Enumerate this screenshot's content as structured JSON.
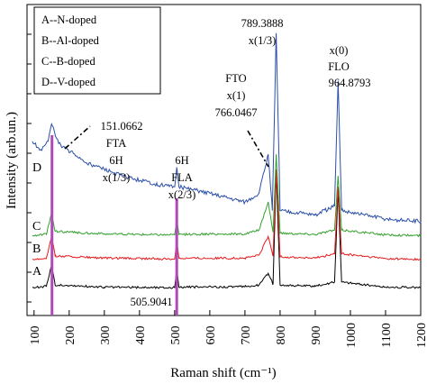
{
  "chart_data": {
    "type": "line",
    "xlabel": "Raman shift (cm⁻¹)",
    "ylabel": "Intensity (arb.un.)",
    "xlim": [
      80,
      1200
    ],
    "x_ticks": [
      "100",
      "200",
      "300",
      "400",
      "500",
      "600",
      "700",
      "800",
      "900",
      "1000",
      "1100",
      "1200"
    ],
    "grid": false,
    "legend_position": "top-left",
    "legend": [
      "A--N-doped",
      "B--Al-doped",
      "C--B-doped",
      "D--V-doped"
    ],
    "colors": {
      "A": "#000000",
      "B": "#e41a1c",
      "C": "#33a02c",
      "D": "#2b4fa8",
      "marker": "#b04ab8"
    },
    "series": [
      {
        "name": "A",
        "label": "A",
        "offset": 0.0,
        "points": [
          [
            95,
            0.02
          ],
          [
            135,
            0.05
          ],
          [
            150,
            0.55
          ],
          [
            160,
            0.08
          ],
          [
            300,
            0.03
          ],
          [
            500,
            0.02
          ],
          [
            506,
            0.45
          ],
          [
            512,
            0.03
          ],
          [
            700,
            0.04
          ],
          [
            740,
            0.08
          ],
          [
            766,
            0.35
          ],
          [
            780,
            0.1
          ],
          [
            789,
            2.7
          ],
          [
            800,
            0.08
          ],
          [
            900,
            0.05
          ],
          [
            955,
            0.15
          ],
          [
            965,
            2.3
          ],
          [
            975,
            0.15
          ],
          [
            1100,
            0.03
          ],
          [
            1200,
            0.02
          ]
        ]
      },
      {
        "name": "B",
        "label": "B",
        "offset": 0.65,
        "points": [
          [
            95,
            0.02
          ],
          [
            135,
            0.05
          ],
          [
            150,
            0.55
          ],
          [
            160,
            0.1
          ],
          [
            300,
            0.05
          ],
          [
            500,
            0.03
          ],
          [
            506,
            0.45
          ],
          [
            512,
            0.05
          ],
          [
            700,
            0.05
          ],
          [
            740,
            0.12
          ],
          [
            766,
            0.55
          ],
          [
            780,
            0.1
          ],
          [
            789,
            2.1
          ],
          [
            800,
            0.08
          ],
          [
            900,
            0.05
          ],
          [
            955,
            0.15
          ],
          [
            965,
            1.7
          ],
          [
            975,
            0.15
          ],
          [
            1100,
            0.04
          ],
          [
            1200,
            0.02
          ]
        ]
      },
      {
        "name": "C",
        "label": "C",
        "offset": 1.2,
        "points": [
          [
            95,
            0.02
          ],
          [
            135,
            0.05
          ],
          [
            150,
            0.55
          ],
          [
            160,
            0.12
          ],
          [
            300,
            0.06
          ],
          [
            500,
            0.04
          ],
          [
            506,
            0.4
          ],
          [
            512,
            0.05
          ],
          [
            700,
            0.06
          ],
          [
            740,
            0.15
          ],
          [
            766,
            0.8
          ],
          [
            780,
            0.1
          ],
          [
            789,
            1.9
          ],
          [
            800,
            0.08
          ],
          [
            900,
            0.05
          ],
          [
            955,
            0.15
          ],
          [
            965,
            1.4
          ],
          [
            975,
            0.15
          ],
          [
            1100,
            0.04
          ],
          [
            1200,
            0.02
          ]
        ]
      },
      {
        "name": "D",
        "label": "D",
        "offset": 1.5,
        "points": [
          [
            95,
            1.9
          ],
          [
            120,
            1.7
          ],
          [
            140,
            1.9
          ],
          [
            150,
            2.3
          ],
          [
            170,
            1.85
          ],
          [
            250,
            1.4
          ],
          [
            350,
            1.1
          ],
          [
            450,
            0.9
          ],
          [
            500,
            0.85
          ],
          [
            506,
            1.3
          ],
          [
            512,
            0.85
          ],
          [
            600,
            0.7
          ],
          [
            700,
            0.5
          ],
          [
            740,
            0.7
          ],
          [
            766,
            1.6
          ],
          [
            778,
            0.3
          ],
          [
            789,
            4.4
          ],
          [
            800,
            0.3
          ],
          [
            900,
            0.2
          ],
          [
            955,
            0.4
          ],
          [
            965,
            3.3
          ],
          [
            975,
            0.3
          ],
          [
            1100,
            0.1
          ],
          [
            1200,
            0.05
          ]
        ]
      }
    ],
    "markers": [
      {
        "x": 151.0662,
        "label": "151.0662 FTA 6H x(1/3)"
      },
      {
        "x": 505.9041,
        "label": "6H FLA x(2/3)"
      }
    ],
    "annotations": {
      "fta": [
        "151.0662",
        "FTA",
        "6H",
        "x(1/3)"
      ],
      "fla": [
        "6H",
        "FLA",
        "x(2/3)"
      ],
      "fla_value": "505.9041",
      "fto": [
        "FTO",
        "x(1)",
        "766.0467"
      ],
      "peak": [
        "789.3888",
        "x(1/3)"
      ],
      "flo": [
        "x(0)",
        "FLO",
        "964.8793"
      ]
    }
  }
}
